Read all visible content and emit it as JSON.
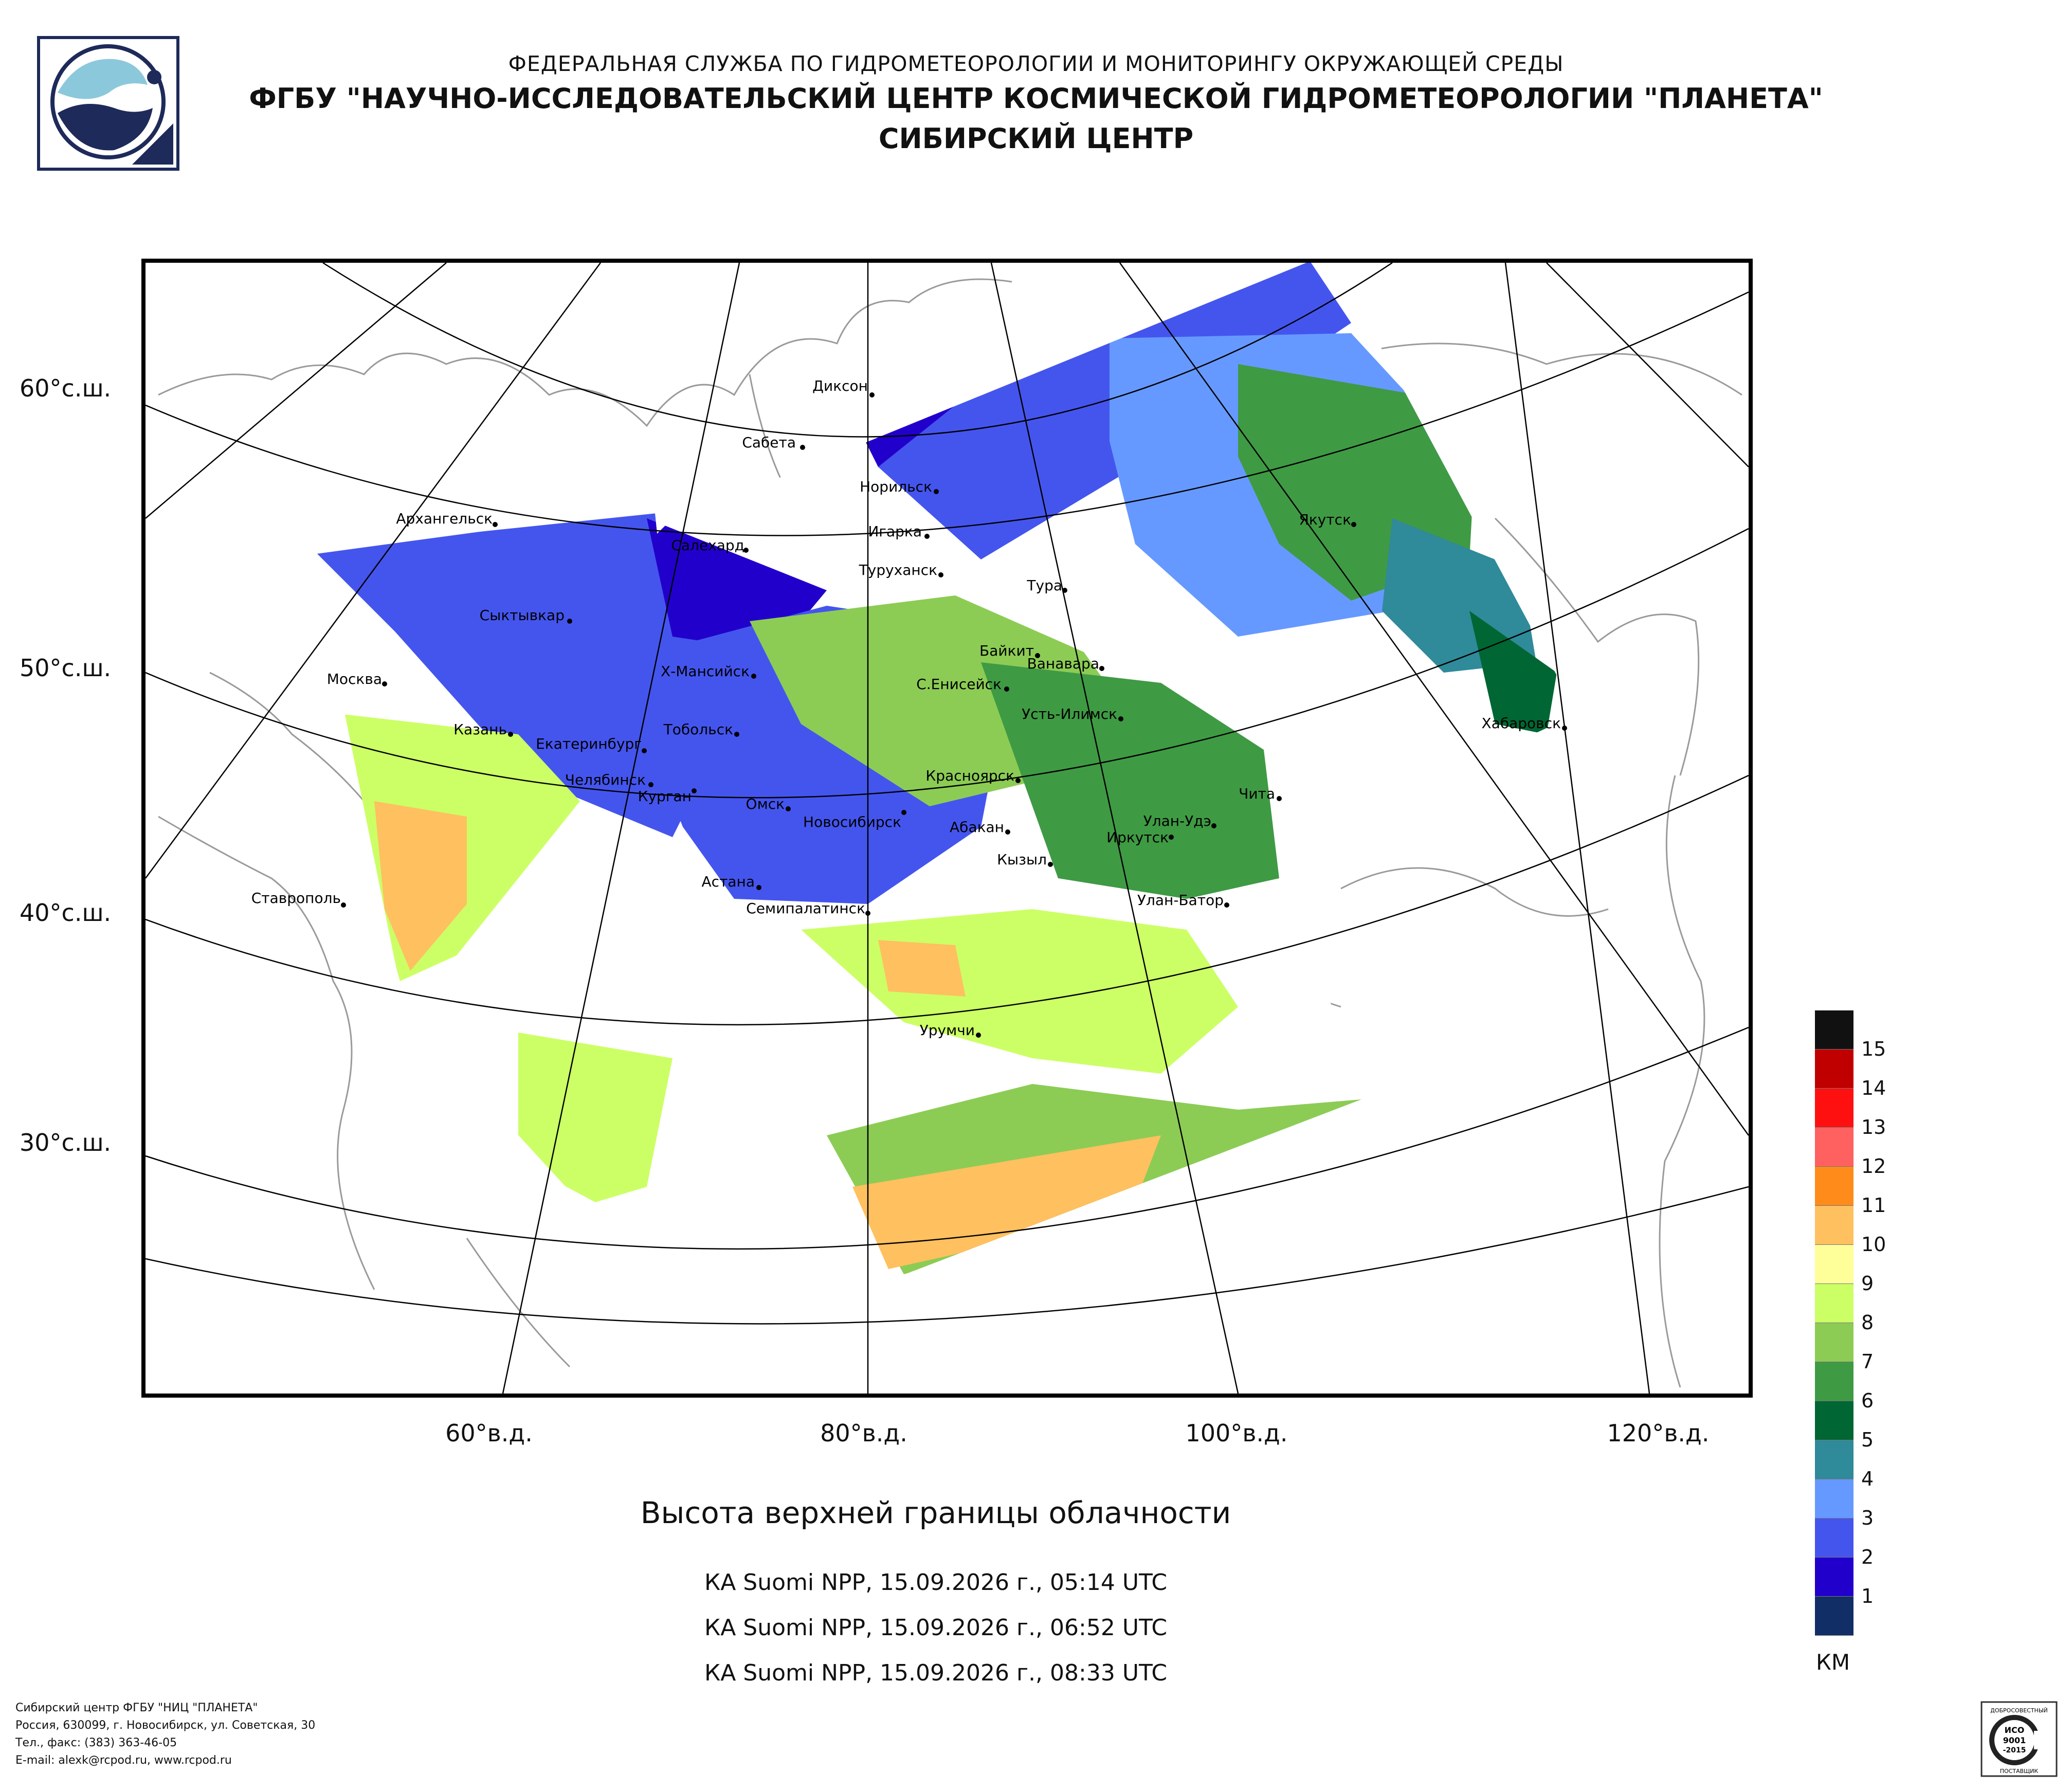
{
  "header": {
    "agency": "ФЕДЕРАЛЬНАЯ СЛУЖБА ПО ГИДРОМЕТЕОРОЛОГИИ И МОНИТОРИНГУ ОКРУЖАЮЩЕЙ СРЕДЫ",
    "institute": "ФГБУ \"НАУЧНО-ИССЛЕДОВАТЕЛЬСКИЙ ЦЕНТР КОСМИЧЕСКОЙ ГИДРОМЕТЕОРОЛОГИИ \"ПЛАНЕТА\"",
    "center": "СИБИРСКИЙ ЦЕНТР"
  },
  "map": {
    "lat_labels": [
      "60°с.ш.",
      "50°с.ш.",
      "40°с.ш.",
      "30°с.ш."
    ],
    "lon_labels": [
      "60°в.д.",
      "80°в.д.",
      "100°в.д.",
      "120°в.д."
    ],
    "cities": [
      "Диксон",
      "Сабета",
      "Норильск",
      "Игарка",
      "Салехард",
      "Архангельск",
      "Туруханск",
      "Тура",
      "Якутск",
      "Сыктывкар",
      "Байкит",
      "Ванавара",
      "Москва",
      "Х-Мансийск",
      "С.Енисейск",
      "Усть-Илимск",
      "Хабаровск",
      "Казань",
      "Тобольск",
      "Екатеринбург",
      "Челябинск",
      "Красноярск",
      "Курган",
      "Омск",
      "Чита",
      "Новосибирск",
      "Абакан",
      "Улан-Удэ",
      "Иркутск",
      "Кызыл",
      "Астана",
      "Ставрополь",
      "Улан-Батор",
      "Семипалатинск",
      "Урумчи"
    ]
  },
  "product": {
    "title": "Высота верхней границы облачности",
    "passes": [
      "КА Suomi NPP, 15.09.2026 г., 05:14 UTC",
      "КА Suomi NPP, 15.09.2026 г., 06:52 UTC",
      "КА Suomi NPP, 15.09.2026 г., 08:33 UTC"
    ]
  },
  "legend": {
    "unit": "КМ",
    "levels": [
      "15",
      "14",
      "13",
      "12",
      "11",
      "10",
      "9",
      "8",
      "7",
      "6",
      "5",
      "4",
      "3",
      "2",
      "1"
    ],
    "colors": [
      "#111111",
      "#c00000",
      "#ff1010",
      "#ff6060",
      "#ff8c1a",
      "#ffc060",
      "#ffff99",
      "#ccff66",
      "#8ccc55",
      "#3f9a44",
      "#006633",
      "#2f8a99",
      "#6699ff",
      "#4455ee",
      "#2200cc",
      "#112f66"
    ]
  },
  "footer": {
    "lines": [
      "Сибирский центр ФГБУ \"НИЦ \"ПЛАНЕТА\"",
      "Россия, 630099, г. Новосибирск, ул. Советская, 30",
      "Тел., факс: (383) 363-46-05",
      "E-mail: alexk@rcpod.ru, www.rcpod.ru"
    ],
    "certificate": [
      "ДОБРОСОВЕСТНЫЙ",
      "ИСО",
      "9001",
      "-2015",
      "ПОСТАВЩИК"
    ]
  }
}
